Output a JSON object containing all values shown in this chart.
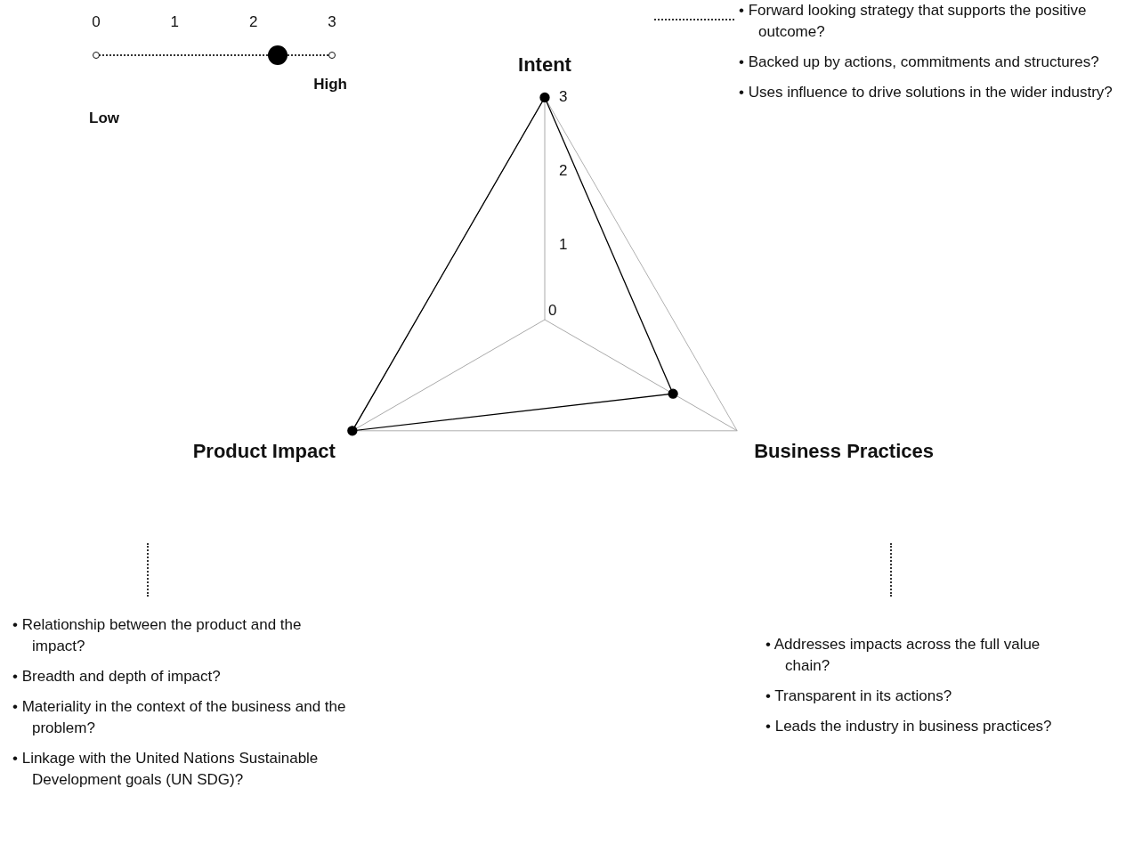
{
  "chart_data": {
    "type": "radar",
    "categories": [
      "Intent",
      "Business Practices",
      "Product Impact"
    ],
    "series": [
      {
        "color": "#000000",
        "values": [
          3,
          2,
          3
        ]
      }
    ],
    "ylim": [
      0,
      3
    ],
    "yticks": [
      0,
      1,
      2,
      3
    ],
    "grid": true,
    "legend": false,
    "marker": "circle",
    "annotations": [
      "Low",
      "High",
      "• Forward looking strategy that supports the positive outcome?",
      "• Backed up by actions, commitments and structures?",
      "• Uses influence to drive solutions in the wider industry?",
      "• Addresses impacts across the full value chain?",
      "• Transparent in its actions?",
      "• Leads the industry in business practices?",
      "• Relationship between the product and the impact?",
      "• Breadth and depth of impact?",
      "• Materiality in the context of the business and the problem?",
      "• Linkage with the United Nations Sustainable Development goals (UN SDG)?",
      "0",
      "1",
      "2",
      "3"
    ]
  }
}
